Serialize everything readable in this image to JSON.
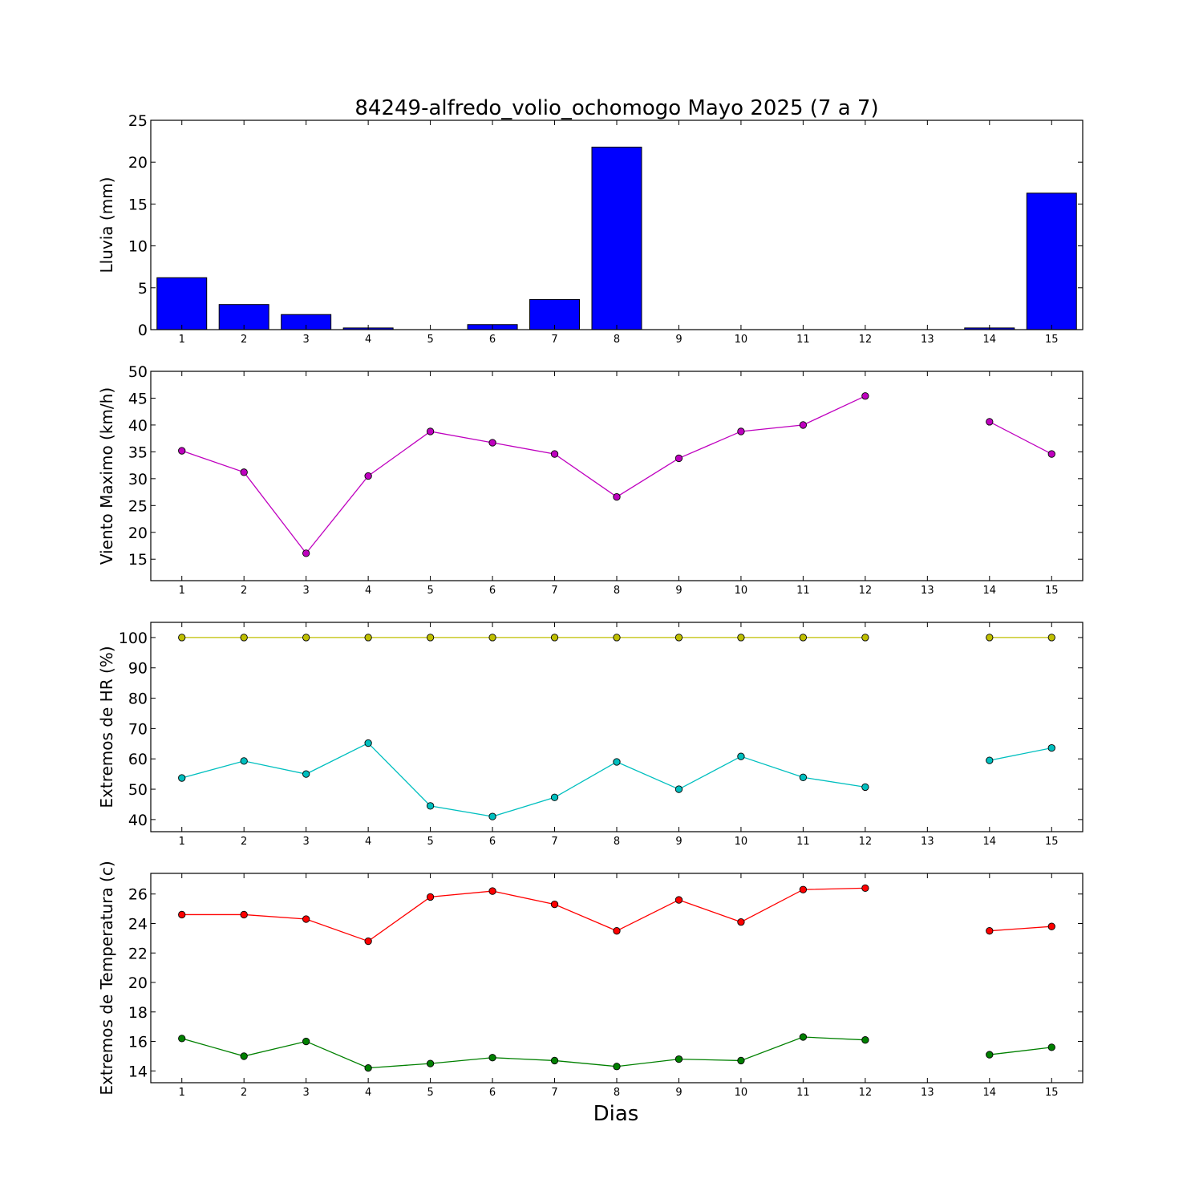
{
  "figure": {
    "title": "84249-alfredo_volio_ochomogo Mayo 2025  (7 a 7)",
    "xlabel": "Dias"
  },
  "chart_data": [
    {
      "type": "bar",
      "ylabel": "Lluvia (mm)",
      "x": [
        1,
        2,
        3,
        4,
        5,
        6,
        7,
        8,
        9,
        10,
        11,
        12,
        13,
        14,
        15
      ],
      "xticks": [
        1,
        2,
        3,
        4,
        5,
        6,
        7,
        8,
        9,
        10,
        11,
        12,
        13,
        14,
        15
      ],
      "xlim": [
        0.5,
        15.5
      ],
      "ylim": [
        0,
        25
      ],
      "yticks": [
        0,
        5,
        10,
        15,
        20,
        25
      ],
      "series": [
        {
          "color": "#0000ff",
          "values": [
            6.2,
            3.0,
            1.8,
            0.2,
            0.0,
            0.6,
            3.6,
            21.8,
            0.0,
            0.0,
            0.0,
            0.0,
            null,
            0.2,
            16.3
          ]
        }
      ]
    },
    {
      "type": "line",
      "ylabel": "Viento Maximo (km/h)",
      "x": [
        1,
        2,
        3,
        4,
        5,
        6,
        7,
        8,
        9,
        10,
        11,
        12,
        13,
        14,
        15
      ],
      "xticks": [
        1,
        2,
        3,
        4,
        5,
        6,
        7,
        8,
        9,
        10,
        11,
        12,
        13,
        14,
        15
      ],
      "xlim": [
        0.5,
        15.5
      ],
      "ylim": [
        11,
        50
      ],
      "yticks": [
        15,
        20,
        25,
        30,
        35,
        40,
        45,
        50
      ],
      "series": [
        {
          "color": "#bf00bf",
          "values": [
            35.2,
            31.2,
            16.1,
            30.5,
            38.8,
            36.7,
            34.6,
            26.6,
            33.8,
            38.8,
            40.0,
            45.4,
            null,
            40.6,
            34.6
          ]
        }
      ]
    },
    {
      "type": "line",
      "ylabel": "Extremos de HR (%)",
      "x": [
        1,
        2,
        3,
        4,
        5,
        6,
        7,
        8,
        9,
        10,
        11,
        12,
        13,
        14,
        15
      ],
      "xticks": [
        1,
        2,
        3,
        4,
        5,
        6,
        7,
        8,
        9,
        10,
        11,
        12,
        13,
        14,
        15
      ],
      "xlim": [
        0.5,
        15.5
      ],
      "ylim": [
        36,
        105
      ],
      "yticks": [
        40,
        50,
        60,
        70,
        80,
        90,
        100
      ],
      "series": [
        {
          "color": "#bfbf00",
          "values": [
            100,
            100,
            100,
            100,
            100,
            100,
            100,
            100,
            100,
            100,
            100,
            100,
            null,
            100,
            100
          ]
        },
        {
          "color": "#00bfbf",
          "values": [
            53.7,
            59.3,
            55.0,
            65.2,
            44.5,
            41.0,
            47.3,
            59.0,
            50.0,
            60.8,
            53.9,
            50.7,
            null,
            59.5,
            63.6
          ]
        }
      ]
    },
    {
      "type": "line",
      "ylabel": "Extremos de Temperatura (c)",
      "x": [
        1,
        2,
        3,
        4,
        5,
        6,
        7,
        8,
        9,
        10,
        11,
        12,
        13,
        14,
        15
      ],
      "xticks": [
        1,
        2,
        3,
        4,
        5,
        6,
        7,
        8,
        9,
        10,
        11,
        12,
        13,
        14,
        15
      ],
      "xlim": [
        0.5,
        15.5
      ],
      "ylim": [
        13.2,
        27.4
      ],
      "yticks": [
        14,
        16,
        18,
        20,
        22,
        24,
        26
      ],
      "series": [
        {
          "color": "#ff0000",
          "values": [
            24.6,
            24.6,
            24.3,
            22.8,
            25.8,
            26.2,
            25.3,
            23.5,
            25.6,
            24.1,
            26.3,
            26.4,
            null,
            23.5,
            23.8
          ]
        },
        {
          "color": "#008000",
          "values": [
            16.2,
            15.0,
            16.0,
            14.2,
            14.5,
            14.9,
            14.7,
            14.3,
            14.8,
            14.7,
            16.3,
            16.1,
            null,
            15.1,
            15.6
          ]
        }
      ]
    }
  ]
}
